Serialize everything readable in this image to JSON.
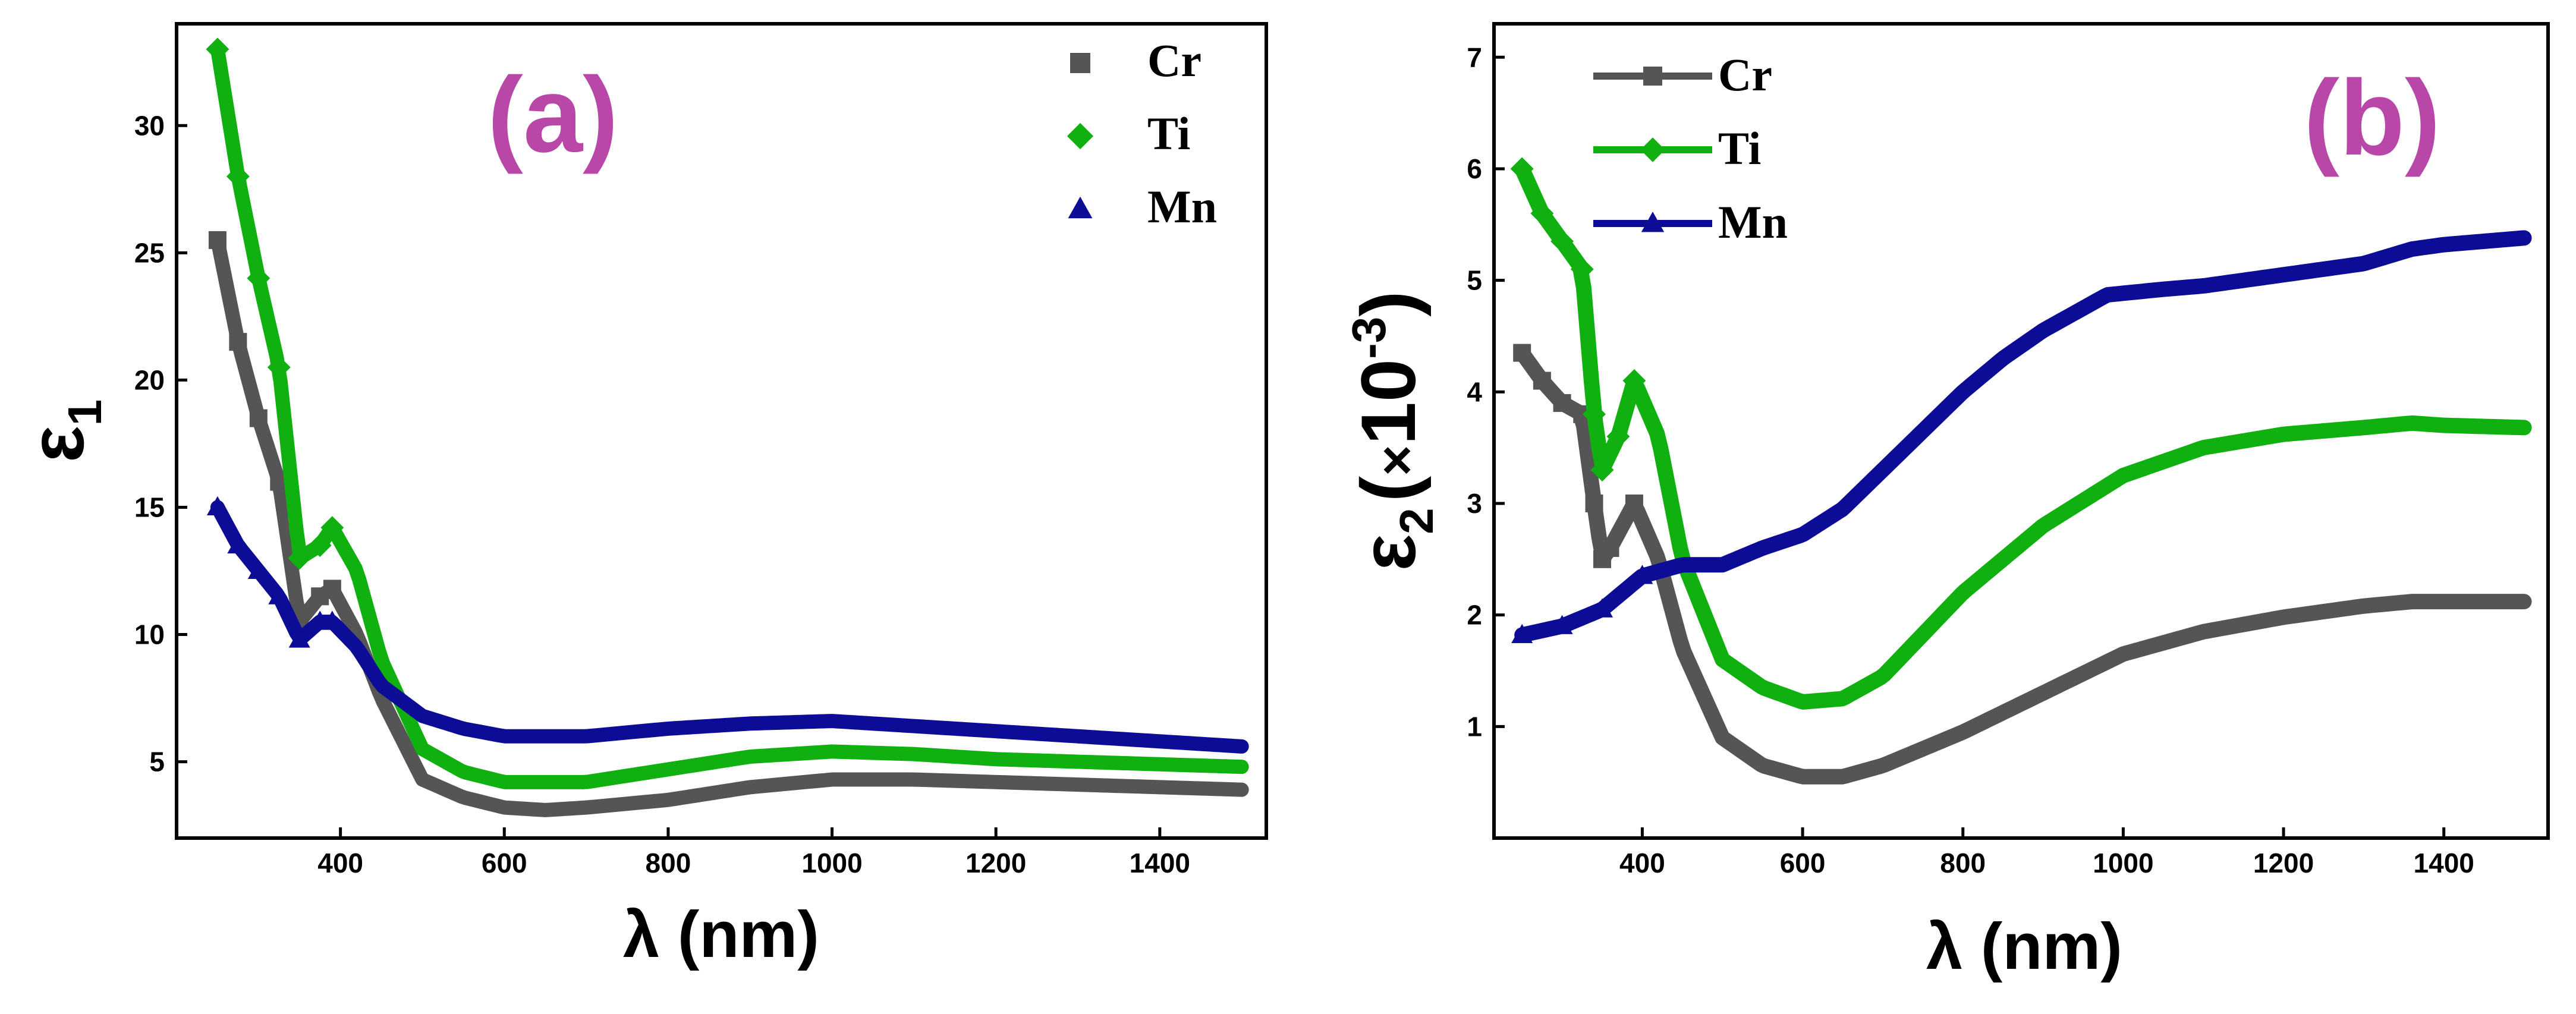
{
  "colors": {
    "Cr": "#555555",
    "Ti": "#11b011",
    "Mn": "#0c0c96",
    "panel_label": "#b847a8"
  },
  "chart_data": [
    {
      "type": "scatter",
      "panel_label": "(a)",
      "xlabel": "λ (nm)",
      "ylabel": "ε",
      "ylabel_sub": "1",
      "xlim": [
        200,
        1530
      ],
      "ylim": [
        2,
        34
      ],
      "xticks": [
        400,
        600,
        800,
        1000,
        1200,
        1400
      ],
      "yticks": [
        5,
        10,
        15,
        20,
        25,
        30
      ],
      "legend_style": "markers",
      "series": [
        {
          "name": "Cr",
          "marker": "square",
          "x": [
            250,
            275,
            300,
            325,
            350,
            375,
            390,
            420,
            450,
            500,
            550,
            600,
            650,
            700,
            800,
            900,
            1000,
            1100,
            1200,
            1300,
            1400,
            1500
          ],
          "y": [
            25.5,
            21.5,
            18.5,
            16.0,
            10.5,
            11.5,
            11.8,
            10.0,
            7.5,
            4.3,
            3.6,
            3.2,
            3.1,
            3.2,
            3.5,
            4.0,
            4.3,
            4.3,
            4.2,
            4.1,
            4.0,
            3.9
          ]
        },
        {
          "name": "Ti",
          "marker": "diamond",
          "x": [
            250,
            275,
            300,
            325,
            350,
            375,
            390,
            420,
            450,
            500,
            550,
            600,
            700,
            800,
            900,
            1000,
            1100,
            1200,
            1300,
            1400,
            1500
          ],
          "y": [
            33.0,
            28.0,
            24.0,
            20.5,
            13.0,
            13.5,
            14.2,
            12.5,
            9.0,
            5.5,
            4.6,
            4.2,
            4.2,
            4.7,
            5.2,
            5.4,
            5.3,
            5.1,
            5.0,
            4.9,
            4.8
          ]
        },
        {
          "name": "Mn",
          "marker": "triangle",
          "x": [
            250,
            275,
            300,
            325,
            350,
            375,
            390,
            420,
            450,
            500,
            550,
            600,
            700,
            800,
            900,
            1000,
            1100,
            1200,
            1300,
            1400,
            1500
          ],
          "y": [
            15.0,
            13.5,
            12.5,
            11.5,
            9.8,
            10.5,
            10.5,
            9.5,
            8.0,
            6.8,
            6.3,
            6.0,
            6.0,
            6.3,
            6.5,
            6.6,
            6.4,
            6.2,
            6.0,
            5.8,
            5.6
          ]
        }
      ]
    },
    {
      "type": "line",
      "panel_label": "(b)",
      "xlabel": "λ (nm)",
      "ylabel": "ε",
      "ylabel_sub": "2",
      "ylabel_factor": "(",
      "ylabel_times": "×",
      "ylabel_base": "10",
      "ylabel_exp": "-3",
      "ylabel_close": ")",
      "xlim": [
        215,
        1530
      ],
      "ylim": [
        0,
        7.3
      ],
      "xticks": [
        400,
        600,
        800,
        1000,
        1200,
        1400
      ],
      "yticks": [
        1,
        2,
        3,
        4,
        5,
        6,
        7
      ],
      "legend_style": "line-marker",
      "series": [
        {
          "name": "Cr",
          "marker": "square",
          "x": [
            250,
            275,
            300,
            325,
            340,
            350,
            360,
            390,
            420,
            450,
            500,
            550,
            600,
            650,
            700,
            800,
            900,
            1000,
            1100,
            1200,
            1300,
            1360,
            1400,
            1500
          ],
          "y": [
            4.35,
            4.1,
            3.9,
            3.8,
            3.0,
            2.5,
            2.6,
            3.0,
            2.5,
            1.7,
            0.9,
            0.65,
            0.55,
            0.55,
            0.65,
            0.95,
            1.3,
            1.65,
            1.85,
            1.98,
            2.08,
            2.12,
            2.12,
            2.12
          ]
        },
        {
          "name": "Ti",
          "marker": "diamond",
          "x": [
            250,
            275,
            300,
            325,
            340,
            350,
            370,
            390,
            420,
            450,
            500,
            550,
            600,
            650,
            700,
            800,
            900,
            1000,
            1100,
            1200,
            1300,
            1360,
            1400,
            1500
          ],
          "y": [
            6.0,
            5.6,
            5.35,
            5.1,
            3.8,
            3.3,
            3.6,
            4.1,
            3.6,
            2.5,
            1.6,
            1.35,
            1.22,
            1.25,
            1.45,
            2.2,
            2.8,
            3.25,
            3.5,
            3.62,
            3.68,
            3.72,
            3.7,
            3.68
          ]
        },
        {
          "name": "Mn",
          "marker": "triangle",
          "x": [
            250,
            300,
            350,
            400,
            450,
            500,
            550,
            600,
            650,
            700,
            750,
            800,
            850,
            900,
            950,
            980,
            1050,
            1100,
            1200,
            1300,
            1360,
            1400,
            1500
          ],
          "y": [
            1.82,
            1.9,
            2.05,
            2.35,
            2.45,
            2.45,
            2.6,
            2.72,
            2.95,
            3.3,
            3.65,
            4.0,
            4.3,
            4.55,
            4.75,
            4.87,
            4.92,
            4.95,
            5.05,
            5.15,
            5.28,
            5.32,
            5.38
          ]
        }
      ]
    }
  ]
}
